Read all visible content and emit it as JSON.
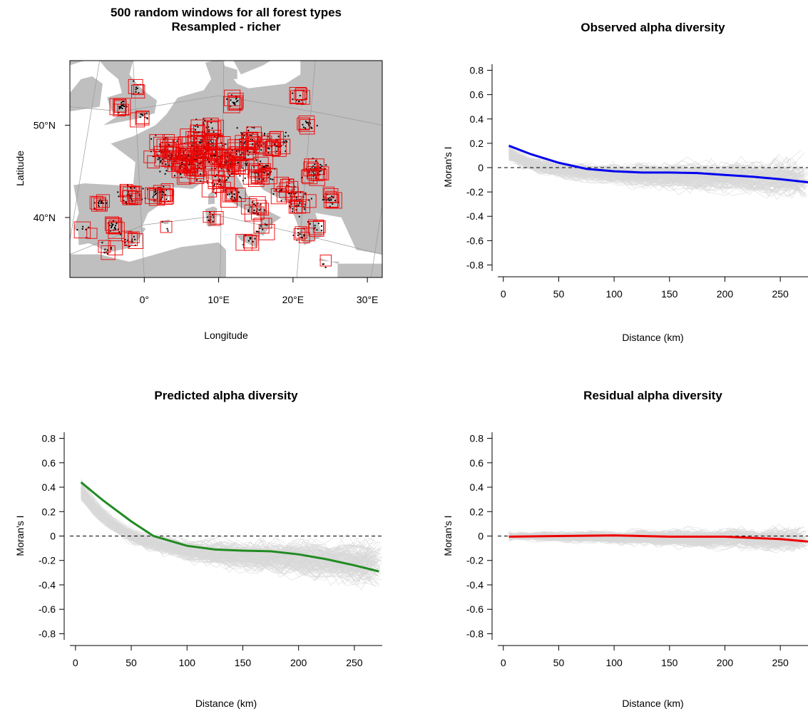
{
  "colors": {
    "observed": "#0000ee",
    "predicted": "#228b22",
    "residual": "#ee0000",
    "window": "#ee0000",
    "plots": "#000000",
    "land": "#bfbfbf",
    "curves": "#d9d9d9"
  },
  "chart_data": [
    {
      "type": "scatter",
      "title": "500 random windows for all forest types\nResampled - richer",
      "xlabel": "Longitude",
      "ylabel": "Latitude",
      "xlim": [
        -10,
        32
      ],
      "ylim": [
        33.5,
        57
      ],
      "x_ticks": [
        0,
        10,
        20,
        30
      ],
      "x_tick_labels": [
        "0°",
        "10°E",
        "20°E",
        "30°E"
      ],
      "y_ticks": [
        40,
        50
      ],
      "y_tick_labels": [
        "40°N",
        "50°N"
      ],
      "clusters": [
        {
          "lon": -3,
          "lat": 52,
          "n": 6
        },
        {
          "lon": -1,
          "lat": 54,
          "n": 3
        },
        {
          "lon": 0,
          "lat": 51,
          "n": 3
        },
        {
          "lon": 12,
          "lat": 52.5,
          "n": 5
        },
        {
          "lon": 21,
          "lat": 53,
          "n": 5
        },
        {
          "lon": 22,
          "lat": 50,
          "n": 4
        },
        {
          "lon": 3,
          "lat": 47,
          "n": 22
        },
        {
          "lon": 6,
          "lat": 46,
          "n": 35
        },
        {
          "lon": 9,
          "lat": 47,
          "n": 28
        },
        {
          "lon": 12,
          "lat": 46,
          "n": 22
        },
        {
          "lon": 14,
          "lat": 48,
          "n": 18
        },
        {
          "lon": 16,
          "lat": 45,
          "n": 14
        },
        {
          "lon": 8,
          "lat": 49,
          "n": 18
        },
        {
          "lon": 18,
          "lat": 48,
          "n": 10
        },
        {
          "lon": 23,
          "lat": 45,
          "n": 12
        },
        {
          "lon": 25,
          "lat": 42,
          "n": 6
        },
        {
          "lon": 21,
          "lat": 41.5,
          "n": 8
        },
        {
          "lon": 19,
          "lat": 43,
          "n": 8
        },
        {
          "lon": 15,
          "lat": 41,
          "n": 6
        },
        {
          "lon": 12,
          "lat": 42.5,
          "n": 6
        },
        {
          "lon": 10,
          "lat": 44,
          "n": 8
        },
        {
          "lon": 2,
          "lat": 42.5,
          "n": 10
        },
        {
          "lon": -2,
          "lat": 42.5,
          "n": 10
        },
        {
          "lon": -6,
          "lat": 41.5,
          "n": 5
        },
        {
          "lon": -4,
          "lat": 39,
          "n": 6
        },
        {
          "lon": -5,
          "lat": 36.5,
          "n": 3
        },
        {
          "lon": -2,
          "lat": 37.5,
          "n": 4
        },
        {
          "lon": -8,
          "lat": 38.5,
          "n": 2
        },
        {
          "lon": 9,
          "lat": 40,
          "n": 3
        },
        {
          "lon": 3,
          "lat": 39,
          "n": 1
        },
        {
          "lon": 14,
          "lat": 37.5,
          "n": 3
        },
        {
          "lon": 16,
          "lat": 39,
          "n": 3
        },
        {
          "lon": 21,
          "lat": 38,
          "n": 4
        },
        {
          "lon": 23,
          "lat": 39,
          "n": 3
        },
        {
          "lon": 24.5,
          "lat": 35,
          "n": 1
        }
      ]
    },
    {
      "type": "line",
      "title": "Observed alpha diversity",
      "xlabel": "Distance (km)",
      "ylabel": "Moran's I",
      "xlim": [
        -5,
        275
      ],
      "ylim": [
        -0.85,
        0.85
      ],
      "x_ticks": [
        0,
        50,
        100,
        150,
        200,
        250
      ],
      "y_ticks": [
        0.8,
        0.6,
        0.4,
        0.2,
        0,
        -0.2,
        -0.4,
        -0.6,
        -0.8
      ],
      "y_tick_labels": [
        "0.8",
        "0.6",
        "0.4",
        "0.2",
        "0",
        "-0.2",
        "-0.4",
        "-0.6",
        "-0.8"
      ],
      "series": [
        {
          "color_key": "observed",
          "x": [
            5,
            25,
            50,
            75,
            100,
            125,
            150,
            175,
            200,
            225,
            250,
            275
          ],
          "y": [
            0.18,
            0.11,
            0.04,
            -0.01,
            -0.03,
            -0.04,
            -0.04,
            -0.045,
            -0.06,
            -0.075,
            -0.095,
            -0.12
          ]
        }
      ]
    },
    {
      "type": "line",
      "title": "Predicted alpha diversity",
      "xlabel": "Distance (km)",
      "ylabel": "Moran's I",
      "xlim": [
        -5,
        275
      ],
      "ylim": [
        -0.85,
        0.85
      ],
      "x_ticks": [
        0,
        50,
        100,
        150,
        200,
        250
      ],
      "y_ticks": [
        0.8,
        0.6,
        0.4,
        0.2,
        0,
        -0.2,
        -0.4,
        -0.6,
        -0.8
      ],
      "y_tick_labels": [
        "0.8",
        "0.6",
        "0.4",
        "0.2",
        "0",
        "-0.2",
        "-0.4",
        "-0.6",
        "-0.8"
      ],
      "series": [
        {
          "color_key": "predicted",
          "x": [
            5,
            25,
            50,
            70,
            100,
            125,
            150,
            175,
            200,
            225,
            250,
            272
          ],
          "y": [
            0.44,
            0.29,
            0.12,
            0.0,
            -0.08,
            -0.11,
            -0.12,
            -0.125,
            -0.15,
            -0.19,
            -0.24,
            -0.29
          ]
        }
      ]
    },
    {
      "type": "line",
      "title": "Residual alpha diversity",
      "xlabel": "Distance (km)",
      "ylabel": "Moran's I",
      "xlim": [
        -5,
        275
      ],
      "ylim": [
        -0.85,
        0.85
      ],
      "x_ticks": [
        0,
        50,
        100,
        150,
        200,
        250
      ],
      "y_ticks": [
        0.8,
        0.6,
        0.4,
        0.2,
        0,
        -0.2,
        -0.4,
        -0.6,
        -0.8
      ],
      "y_tick_labels": [
        "0.8",
        "0.6",
        "0.4",
        "0.2",
        "0",
        "-0.2",
        "-0.4",
        "-0.6",
        "-0.8"
      ],
      "series": [
        {
          "color_key": "residual",
          "x": [
            5,
            50,
            100,
            150,
            200,
            225,
            250,
            275
          ],
          "y": [
            -0.005,
            0.0,
            0.005,
            -0.005,
            -0.005,
            -0.015,
            -0.025,
            -0.045
          ]
        }
      ]
    }
  ]
}
